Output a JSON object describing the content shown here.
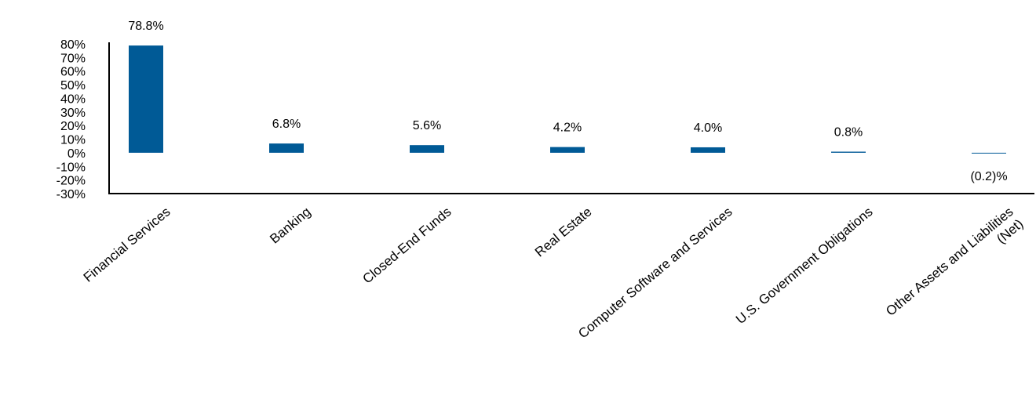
{
  "chart_data": {
    "type": "bar",
    "categories": [
      [
        "Financial Services"
      ],
      [
        "Banking"
      ],
      [
        "Closed-End Funds"
      ],
      [
        "Real Estate"
      ],
      [
        "Computer Software and Services"
      ],
      [
        "U.S. Government Obligations"
      ],
      [
        "Other Assets and Liabilities",
        "(Net)"
      ]
    ],
    "values": [
      78.8,
      6.8,
      5.6,
      4.2,
      4.0,
      0.8,
      -0.2
    ],
    "data_labels": [
      "78.8%",
      "6.8%",
      "5.6%",
      "4.2%",
      "4.0%",
      "0.8%",
      "(0.2)%"
    ],
    "yticks": [
      80,
      70,
      60,
      50,
      40,
      30,
      20,
      10,
      0,
      -10,
      -20,
      -30
    ],
    "ytick_labels": [
      "80%",
      "70%",
      "60%",
      "50%",
      "40%",
      "30%",
      "20%",
      "10%",
      "0%",
      "-10%",
      "-20%",
      "-30%"
    ],
    "ylim": [
      -30,
      80
    ],
    "grid": false,
    "legend": "none",
    "bar_color": "#005A96"
  }
}
